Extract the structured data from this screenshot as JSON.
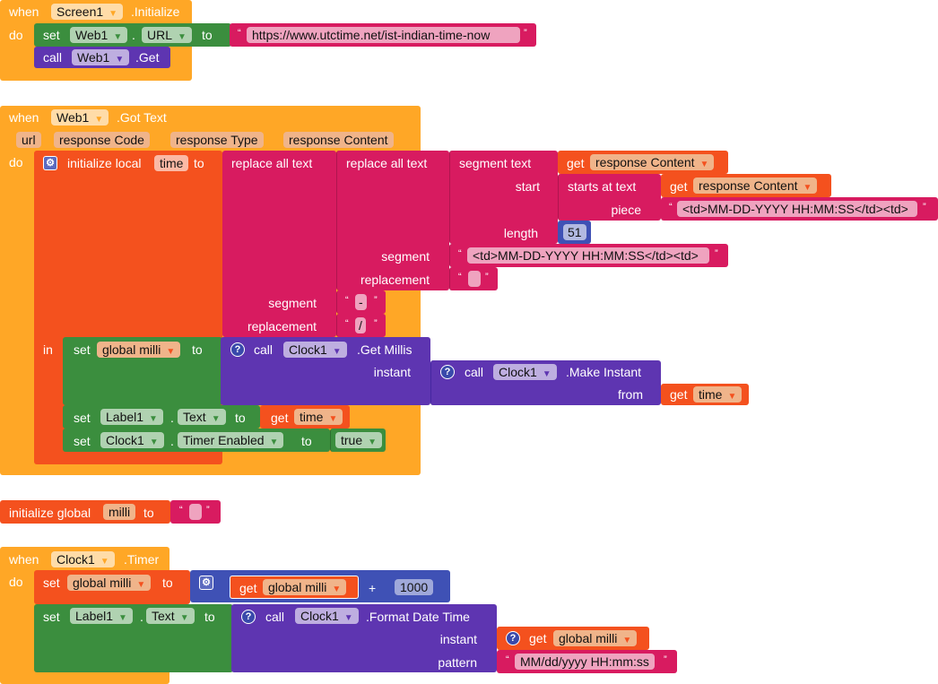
{
  "block1": {
    "when": "when",
    "component": "Screen1",
    "event": ".Initialize",
    "do": "do",
    "set": {
      "set": "set",
      "component": "Web1",
      "dot": ".",
      "property": "URL",
      "to": "to",
      "value": "https://www.utctime.net/ist-indian-time-now"
    },
    "call": {
      "call": "call",
      "component": "Web1",
      "method": ".Get"
    }
  },
  "block2": {
    "when": "when",
    "component": "Web1",
    "event": ".Got Text",
    "do": "do",
    "in": "in",
    "params": [
      "url",
      "response Code",
      "response Type",
      "response Content"
    ],
    "init_local": "initialize local",
    "local_var": "time",
    "to": "to",
    "replace_all": "replace all text",
    "segment": "segment",
    "replacement": "replacement",
    "segment_text": "segment  text",
    "start": "start",
    "length": "length",
    "starts_at": "starts at  text",
    "piece": "piece",
    "get": "get",
    "response_content": "response Content",
    "piece_value": "<td>MM-DD-YYYY HH:MM:SS</td><td>",
    "length_value": "51",
    "inner_segment_value": "<td>MM-DD-YYYY HH:MM:SS</td><td>",
    "inner_replacement_value": "",
    "outer_segment_value": "-",
    "outer_replacement_value": "/",
    "set": "set",
    "global_milli": "global milli",
    "call": "call",
    "clock": "Clock1",
    "get_millis": ".Get Millis",
    "instant": "instant",
    "make_instant": ".Make Instant",
    "from": "from",
    "time": "time",
    "label": "Label1",
    "dot": ".",
    "text_prop": "Text",
    "timer_enabled": "Timer Enabled",
    "true": "true",
    "help": "?"
  },
  "block3": {
    "init_global": "initialize global",
    "var": "milli",
    "to": "to",
    "value": ""
  },
  "block4": {
    "when": "when",
    "component": "Clock1",
    "event": ".Timer",
    "do": "do",
    "set": "set",
    "global_milli": "global milli",
    "to": "to",
    "get": "get",
    "plus": "+",
    "number": "1000",
    "label": "Label1",
    "dot": ".",
    "text_prop": "Text",
    "call": "call",
    "clock": "Clock1",
    "format": ".Format Date Time",
    "instant": "instant",
    "pattern": "pattern",
    "pattern_value": "MM/dd/yyyy HH:mm:ss",
    "help": "?"
  },
  "quote_open": "“",
  "quote_close": "”",
  "colors": {
    "event": "#FFA726",
    "setter": "#3B8E3E",
    "text": "#D81B60",
    "procedure": "#5E35B1",
    "variable": "#F4511E",
    "math": "#3F51B5"
  }
}
